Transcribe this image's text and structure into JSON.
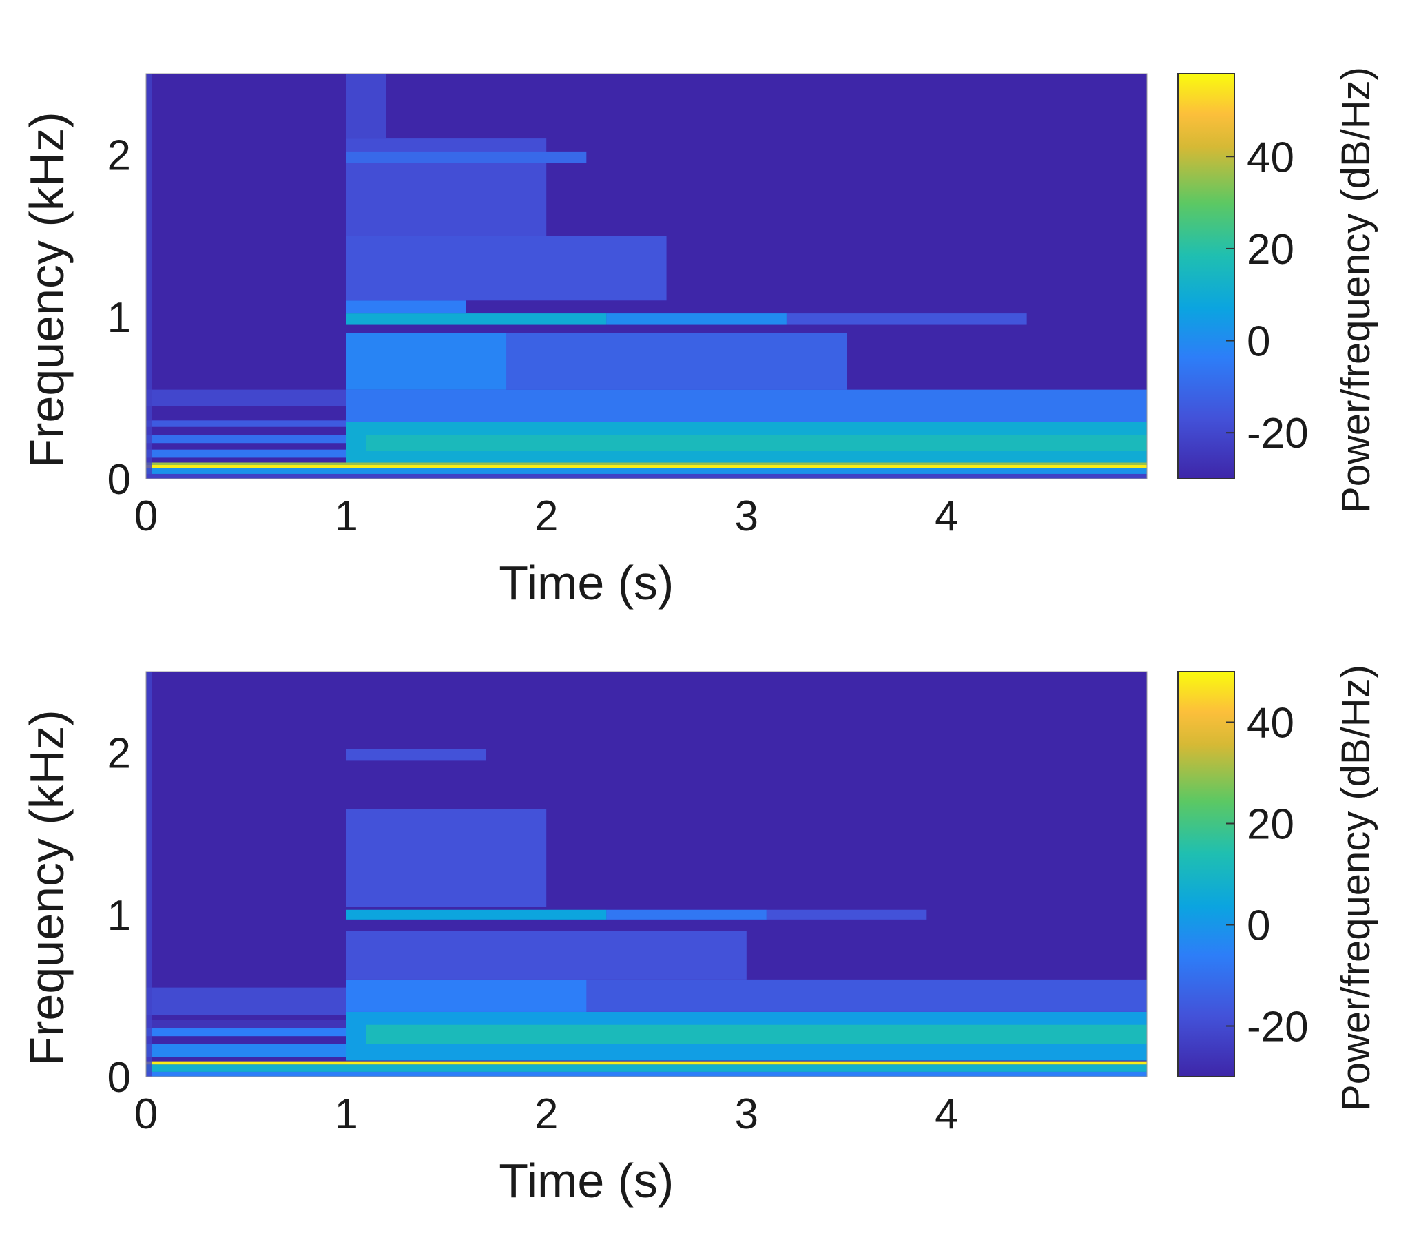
{
  "chart_data": [
    {
      "type": "heatmap",
      "subtype": "spectrogram",
      "title": "",
      "xlabel": "Time (s)",
      "ylabel": "Frequency (kHz)",
      "colorbar_label": "Power/frequency (dB/Hz)",
      "xlim": [
        0,
        5
      ],
      "ylim": [
        0,
        2.5
      ],
      "xticks": [
        0,
        1,
        2,
        3,
        4
      ],
      "yticks": [
        0,
        1,
        2
      ],
      "xtick_labels": [
        "0",
        "1",
        "2",
        "3",
        "4"
      ],
      "ytick_labels": [
        "0",
        "1",
        "2"
      ],
      "clim": [
        -30,
        58
      ],
      "cticks": [
        -20,
        0,
        20,
        40
      ],
      "ctick_labels": [
        "-20",
        "0",
        "20",
        "40"
      ],
      "colormap": "parula",
      "background_db": -30,
      "events": [
        {
          "name": "onset",
          "time": 1.0
        }
      ],
      "bands": [
        {
          "f": [
            0.065,
            0.085
          ],
          "t": [
            0,
            5
          ],
          "db": 56
        },
        {
          "f": [
            0.085,
            0.1
          ],
          "t": [
            0,
            5
          ],
          "db": 36
        },
        {
          "f": [
            0.0,
            0.03
          ],
          "t": [
            0,
            5
          ],
          "db": -22
        },
        {
          "f": [
            0.03,
            0.065
          ],
          "t": [
            0,
            5
          ],
          "db": 2
        },
        {
          "f": [
            0.13,
            0.18
          ],
          "t": [
            0,
            1
          ],
          "db": -6
        },
        {
          "f": [
            0.22,
            0.27
          ],
          "t": [
            0,
            1
          ],
          "db": -8
        },
        {
          "f": [
            0.32,
            0.36
          ],
          "t": [
            0,
            1
          ],
          "db": -14
        },
        {
          "f": [
            0.45,
            0.55
          ],
          "t": [
            0,
            1
          ],
          "db": -20
        },
        {
          "f": [
            0.1,
            0.35
          ],
          "t": [
            1,
            5
          ],
          "db": 10
        },
        {
          "f": [
            0.17,
            0.27
          ],
          "t": [
            1.1,
            5
          ],
          "db": 16
        },
        {
          "f": [
            0.35,
            0.55
          ],
          "t": [
            1,
            5
          ],
          "db": -6
        },
        {
          "f": [
            0.55,
            0.9
          ],
          "t": [
            1,
            3.5
          ],
          "db": -12
        },
        {
          "f": [
            0.55,
            0.9
          ],
          "t": [
            1,
            1.8
          ],
          "db": -2
        },
        {
          "f": [
            0.95,
            1.02
          ],
          "t": [
            1,
            2.3
          ],
          "db": 10
        },
        {
          "f": [
            0.95,
            1.02
          ],
          "t": [
            2.3,
            3.2
          ],
          "db": 0
        },
        {
          "f": [
            0.95,
            1.02
          ],
          "t": [
            3.2,
            4.4
          ],
          "db": -16
        },
        {
          "f": [
            1.02,
            1.1
          ],
          "t": [
            1,
            1.6
          ],
          "db": -4
        },
        {
          "f": [
            1.1,
            1.5
          ],
          "t": [
            1,
            2.6
          ],
          "db": -16
        },
        {
          "f": [
            1.5,
            2.1
          ],
          "t": [
            1,
            2.0
          ],
          "db": -18
        },
        {
          "f": [
            1.95,
            2.02
          ],
          "t": [
            1,
            2.2
          ],
          "db": -10
        },
        {
          "f": [
            2.1,
            2.5
          ],
          "t": [
            1,
            1.2
          ],
          "db": -20
        }
      ]
    },
    {
      "type": "heatmap",
      "subtype": "spectrogram",
      "title": "",
      "xlabel": "Time (s)",
      "ylabel": "Frequency (kHz)",
      "colorbar_label": "Power/frequency (dB/Hz)",
      "xlim": [
        0,
        5
      ],
      "ylim": [
        0,
        2.5
      ],
      "xticks": [
        0,
        1,
        2,
        3,
        4
      ],
      "yticks": [
        0,
        1,
        2
      ],
      "xtick_labels": [
        "0",
        "1",
        "2",
        "3",
        "4"
      ],
      "ytick_labels": [
        "0",
        "1",
        "2"
      ],
      "clim": [
        -30,
        50
      ],
      "cticks": [
        -20,
        0,
        20,
        40
      ],
      "ctick_labels": [
        "-20",
        "0",
        "20",
        "40"
      ],
      "colormap": "parula",
      "background_db": -30,
      "events": [
        {
          "name": "onset",
          "time": 1.0
        }
      ],
      "bands": [
        {
          "f": [
            0.075,
            0.095
          ],
          "t": [
            0,
            5
          ],
          "db": 48
        },
        {
          "f": [
            0.03,
            0.075
          ],
          "t": [
            0,
            5
          ],
          "db": 8
        },
        {
          "f": [
            0.0,
            0.03
          ],
          "t": [
            0,
            5
          ],
          "db": -6
        },
        {
          "f": [
            0.12,
            0.2
          ],
          "t": [
            0,
            1
          ],
          "db": -4
        },
        {
          "f": [
            0.25,
            0.3
          ],
          "t": [
            0,
            1
          ],
          "db": -6
        },
        {
          "f": [
            0.3,
            0.35
          ],
          "t": [
            0,
            1
          ],
          "db": -26
        },
        {
          "f": [
            0.38,
            0.55
          ],
          "t": [
            0,
            1
          ],
          "db": -20
        },
        {
          "f": [
            0.1,
            0.4
          ],
          "t": [
            1,
            5
          ],
          "db": 2
        },
        {
          "f": [
            0.2,
            0.32
          ],
          "t": [
            1.1,
            5
          ],
          "db": 12
        },
        {
          "f": [
            0.4,
            0.6
          ],
          "t": [
            1,
            5
          ],
          "db": -16
        },
        {
          "f": [
            0.4,
            0.6
          ],
          "t": [
            1,
            2.2
          ],
          "db": -6
        },
        {
          "f": [
            0.6,
            0.9
          ],
          "t": [
            1,
            3.0
          ],
          "db": -18
        },
        {
          "f": [
            0.97,
            1.03
          ],
          "t": [
            1,
            2.3
          ],
          "db": 4
        },
        {
          "f": [
            0.97,
            1.03
          ],
          "t": [
            2.3,
            3.1
          ],
          "db": -8
        },
        {
          "f": [
            0.97,
            1.03
          ],
          "t": [
            3.1,
            3.9
          ],
          "db": -18
        },
        {
          "f": [
            1.05,
            1.65
          ],
          "t": [
            1,
            2.0
          ],
          "db": -18
        },
        {
          "f": [
            1.95,
            2.02
          ],
          "t": [
            1,
            1.7
          ],
          "db": -18
        }
      ]
    }
  ]
}
